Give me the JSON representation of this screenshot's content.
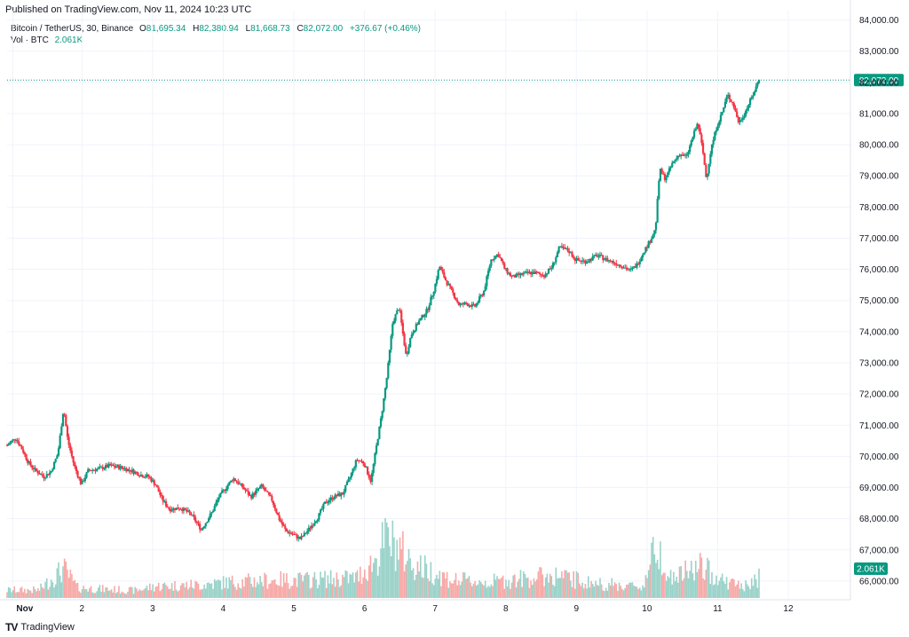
{
  "header": {
    "published": "Published on TradingView.com, Nov 11, 2024 10:23 UTC"
  },
  "legend": {
    "symbol": "Bitcoin / TetherUS, 30, Binance",
    "open_key": "O",
    "open": "81,695.34",
    "high_key": "H",
    "high": "82,380.94",
    "low_key": "L",
    "low": "81,668.73",
    "close_key": "C",
    "close": "82,072.00",
    "change": "+376.67 (+0.46%)",
    "vol_label": "Vol · BTC",
    "vol_value": "2.061K"
  },
  "footer": {
    "brand": "TradingView",
    "logo": "TV"
  },
  "colors": {
    "up": "#089981",
    "down": "#f23645",
    "up_vol": "#9ad2c9",
    "down_vol": "#f7a9a7",
    "grid": "#f0f3fa",
    "price_line": "#089981"
  },
  "chart_data": {
    "type": "candlestick",
    "symbol": "Bitcoin / TetherUS",
    "interval": "30",
    "exchange": "Binance",
    "y_axis": {
      "range": [
        65400,
        84300
      ],
      "ticks": [
        66000,
        67000,
        68000,
        69000,
        70000,
        71000,
        72000,
        73000,
        74000,
        75000,
        76000,
        77000,
        78000,
        79000,
        80000,
        81000,
        82000,
        83000,
        84000
      ],
      "tick_labels": [
        "66,000.00",
        "67,000.00",
        "68,000.00",
        "69,000.00",
        "70,000.00",
        "71,000.00",
        "72,000.00",
        "73,000.00",
        "74,000.00",
        "75,000.00",
        "76,000.00",
        "77,000.00",
        "78,000.00",
        "79,000.00",
        "80,000.00",
        "81,000.00",
        "82,000.00",
        "83,000.00",
        "84,000.00"
      ]
    },
    "x_axis": {
      "range": [
        0,
        11.94
      ],
      "ticks": [
        0,
        1,
        2,
        3,
        4,
        5,
        6,
        7,
        8,
        9,
        10,
        11,
        12
      ],
      "tick_labels": [
        "Nov",
        "2",
        "3",
        "4",
        "5",
        "6",
        "7",
        "8",
        "9",
        "10",
        "11",
        "12"
      ],
      "tick_positions": [
        0.08,
        1.06,
        2.06,
        3.06,
        4.06,
        5.06,
        6.06,
        7.06,
        8.06,
        9.06,
        10.06,
        11.06,
        12.06
      ]
    },
    "last_price": 82072.0,
    "last_price_label": "82,072.00",
    "last_volume_label": "2.061K",
    "volume_max": 3200,
    "grid": true,
    "price_path": [
      [
        0.0,
        70350
      ],
      [
        0.12,
        70600
      ],
      [
        0.22,
        70200
      ],
      [
        0.3,
        69800
      ],
      [
        0.4,
        69550
      ],
      [
        0.52,
        69350
      ],
      [
        0.62,
        69500
      ],
      [
        0.72,
        70100
      ],
      [
        0.8,
        71550
      ],
      [
        0.86,
        70500
      ],
      [
        0.95,
        69700
      ],
      [
        1.05,
        69100
      ],
      [
        1.15,
        69550
      ],
      [
        1.3,
        69600
      ],
      [
        1.45,
        69700
      ],
      [
        1.6,
        69650
      ],
      [
        1.75,
        69550
      ],
      [
        1.9,
        69400
      ],
      [
        2.0,
        69350
      ],
      [
        2.1,
        69100
      ],
      [
        2.2,
        68600
      ],
      [
        2.3,
        68300
      ],
      [
        2.45,
        68350
      ],
      [
        2.6,
        68150
      ],
      [
        2.75,
        67650
      ],
      [
        2.9,
        68200
      ],
      [
        3.0,
        68700
      ],
      [
        3.1,
        69000
      ],
      [
        3.2,
        69300
      ],
      [
        3.32,
        69050
      ],
      [
        3.45,
        68700
      ],
      [
        3.6,
        69050
      ],
      [
        3.75,
        68600
      ],
      [
        3.85,
        68000
      ],
      [
        3.95,
        67600
      ],
      [
        4.05,
        67500
      ],
      [
        4.15,
        67350
      ],
      [
        4.25,
        67600
      ],
      [
        4.4,
        68050
      ],
      [
        4.5,
        68500
      ],
      [
        4.62,
        68700
      ],
      [
        4.75,
        68800
      ],
      [
        4.85,
        69300
      ],
      [
        4.95,
        69900
      ],
      [
        5.05,
        69800
      ],
      [
        5.15,
        69200
      ],
      [
        5.22,
        70200
      ],
      [
        5.3,
        71300
      ],
      [
        5.38,
        72600
      ],
      [
        5.46,
        74300
      ],
      [
        5.55,
        74800
      ],
      [
        5.65,
        73200
      ],
      [
        5.72,
        73900
      ],
      [
        5.82,
        74300
      ],
      [
        5.95,
        74700
      ],
      [
        6.05,
        75400
      ],
      [
        6.12,
        76100
      ],
      [
        6.22,
        75600
      ],
      [
        6.32,
        75200
      ],
      [
        6.4,
        74850
      ],
      [
        6.5,
        74900
      ],
      [
        6.62,
        74800
      ],
      [
        6.75,
        75300
      ],
      [
        6.85,
        76300
      ],
      [
        6.95,
        76500
      ],
      [
        7.05,
        76000
      ],
      [
        7.15,
        75750
      ],
      [
        7.3,
        75850
      ],
      [
        7.45,
        75900
      ],
      [
        7.6,
        75800
      ],
      [
        7.72,
        76100
      ],
      [
        7.82,
        76700
      ],
      [
        7.95,
        76600
      ],
      [
        8.05,
        76300
      ],
      [
        8.2,
        76250
      ],
      [
        8.35,
        76450
      ],
      [
        8.5,
        76300
      ],
      [
        8.62,
        76200
      ],
      [
        8.72,
        76100
      ],
      [
        8.82,
        75950
      ],
      [
        8.92,
        76150
      ],
      [
        9.02,
        76600
      ],
      [
        9.1,
        76900
      ],
      [
        9.18,
        77300
      ],
      [
        9.24,
        79200
      ],
      [
        9.32,
        78900
      ],
      [
        9.42,
        79400
      ],
      [
        9.52,
        79700
      ],
      [
        9.62,
        79600
      ],
      [
        9.7,
        80200
      ],
      [
        9.78,
        80700
      ],
      [
        9.85,
        79800
      ],
      [
        9.9,
        78900
      ],
      [
        9.97,
        79900
      ],
      [
        10.05,
        80600
      ],
      [
        10.12,
        81000
      ],
      [
        10.2,
        81600
      ],
      [
        10.28,
        81300
      ],
      [
        10.36,
        80700
      ],
      [
        10.44,
        81000
      ],
      [
        10.52,
        81400
      ],
      [
        10.58,
        81700
      ],
      [
        10.64,
        82072
      ]
    ],
    "volume_profile": [
      [
        0.0,
        350
      ],
      [
        0.45,
        350
      ],
      [
        0.8,
        1300
      ],
      [
        1.0,
        450
      ],
      [
        1.8,
        330
      ],
      [
        2.1,
        520
      ],
      [
        2.7,
        580
      ],
      [
        3.1,
        700
      ],
      [
        3.8,
        800
      ],
      [
        4.2,
        800
      ],
      [
        4.95,
        900
      ],
      [
        5.25,
        1800
      ],
      [
        5.35,
        2700
      ],
      [
        5.55,
        2200
      ],
      [
        5.75,
        1500
      ],
      [
        6.0,
        1200
      ],
      [
        6.3,
        800
      ],
      [
        6.8,
        700
      ],
      [
        7.75,
        1000
      ],
      [
        8.3,
        650
      ],
      [
        9.0,
        500
      ],
      [
        9.2,
        2500
      ],
      [
        9.4,
        850
      ],
      [
        9.8,
        1400
      ],
      [
        10.2,
        700
      ],
      [
        10.5,
        500
      ],
      [
        10.64,
        900
      ]
    ]
  }
}
